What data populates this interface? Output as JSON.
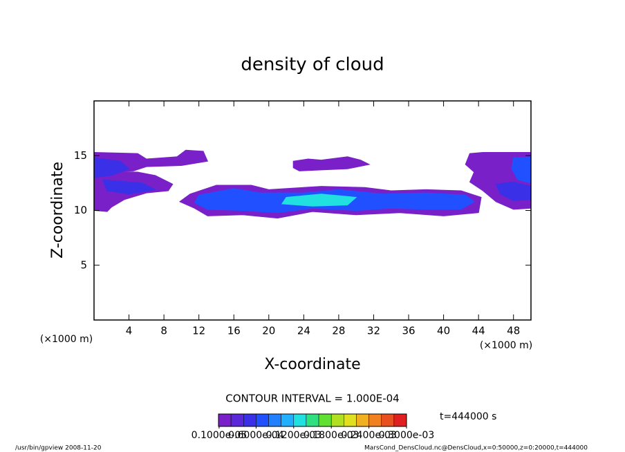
{
  "chart_data": {
    "type": "contour",
    "title": "density of cloud",
    "x_label": "X-coordinate",
    "y_label": "Z-coordinate",
    "x_unit_labels": [
      "(×1000 m)",
      "(×1000 m)"
    ],
    "xlim": [
      0,
      50
    ],
    "ylim": [
      0,
      20
    ],
    "xticks": [
      4,
      8,
      12,
      16,
      20,
      24,
      28,
      32,
      36,
      40,
      44,
      48
    ],
    "yticks": [
      5,
      10,
      15
    ],
    "regions": [
      {
        "value": 1e-05,
        "points": [
          [
            0,
            15.3
          ],
          [
            5,
            15.2
          ],
          [
            6,
            14.7
          ],
          [
            9.5,
            14.9
          ],
          [
            10.5,
            15.5
          ],
          [
            12.5,
            15.4
          ],
          [
            13,
            14.5
          ],
          [
            10,
            14.1
          ],
          [
            6,
            14
          ],
          [
            4.5,
            13.6
          ],
          [
            0,
            13.5
          ]
        ]
      },
      {
        "value": 1e-05,
        "points": [
          [
            0,
            13.6
          ],
          [
            5,
            13.5
          ],
          [
            7,
            13.2
          ],
          [
            9,
            12.4
          ],
          [
            8.5,
            11.8
          ],
          [
            6,
            11.6
          ],
          [
            3.5,
            11
          ],
          [
            2,
            10.3
          ],
          [
            1.5,
            9.9
          ],
          [
            0,
            10
          ]
        ]
      },
      {
        "value": 5e-05,
        "points": [
          [
            0,
            14.8
          ],
          [
            3,
            14.5
          ],
          [
            4,
            13.8
          ],
          [
            2,
            13.2
          ],
          [
            0,
            13
          ]
        ]
      },
      {
        "value": 5e-05,
        "points": [
          [
            1,
            12.8
          ],
          [
            5.5,
            12.5
          ],
          [
            7,
            11.9
          ],
          [
            4,
            11.5
          ],
          [
            1.5,
            11.8
          ]
        ]
      },
      {
        "value": 1e-05,
        "points": [
          [
            22.8,
            14.5
          ],
          [
            24.5,
            14.7
          ],
          [
            26,
            14.6
          ],
          [
            29,
            14.9
          ],
          [
            30.5,
            14.6
          ],
          [
            31.5,
            14.2
          ],
          [
            29,
            13.8
          ],
          [
            26,
            13.7
          ],
          [
            23.5,
            13.6
          ],
          [
            22.8,
            13.9
          ]
        ]
      },
      {
        "value": 1e-05,
        "points": [
          [
            11,
            11.5
          ],
          [
            14,
            12.3
          ],
          [
            18,
            12.3
          ],
          [
            20,
            11.9
          ],
          [
            26,
            12.2
          ],
          [
            31,
            12.1
          ],
          [
            34,
            11.8
          ],
          [
            38,
            11.9
          ],
          [
            42,
            11.8
          ],
          [
            44.3,
            11.2
          ],
          [
            44,
            9.8
          ],
          [
            40,
            9.5
          ],
          [
            35,
            9.8
          ],
          [
            30,
            9.6
          ],
          [
            25,
            9.9
          ],
          [
            21,
            9.3
          ],
          [
            17,
            9.6
          ],
          [
            13,
            9.5
          ],
          [
            11.5,
            10.2
          ],
          [
            9.8,
            10.8
          ]
        ]
      },
      {
        "value": 7e-05,
        "points": [
          [
            12,
            11.4
          ],
          [
            16,
            12
          ],
          [
            19,
            11.6
          ],
          [
            24,
            11.6
          ],
          [
            28,
            11.9
          ],
          [
            33,
            11.5
          ],
          [
            38,
            11.6
          ],
          [
            42.5,
            11.4
          ],
          [
            43.5,
            10.8
          ],
          [
            42,
            10.1
          ],
          [
            38,
            10.1
          ],
          [
            34,
            10.2
          ],
          [
            30,
            10
          ],
          [
            25,
            10.2
          ],
          [
            21,
            9.8
          ],
          [
            17,
            10
          ],
          [
            13,
            10.1
          ],
          [
            11.5,
            10.7
          ]
        ]
      },
      {
        "value": 0.00012,
        "points": [
          [
            22,
            11.2
          ],
          [
            26,
            11.5
          ],
          [
            30,
            11.2
          ],
          [
            29,
            10.5
          ],
          [
            25,
            10.4
          ],
          [
            21.5,
            10.6
          ]
        ]
      },
      {
        "value": 1e-05,
        "points": [
          [
            43,
            15.2
          ],
          [
            44.5,
            15.3
          ],
          [
            50,
            15.3
          ],
          [
            50,
            10.2
          ],
          [
            48,
            10.1
          ],
          [
            46,
            10.8
          ],
          [
            44.5,
            11.8
          ],
          [
            43,
            12.6
          ],
          [
            43.5,
            13.5
          ],
          [
            42.5,
            14.2
          ]
        ]
      },
      {
        "value": 7e-05,
        "points": [
          [
            48,
            14.8
          ],
          [
            50,
            14.9
          ],
          [
            50,
            12.5
          ],
          [
            48.5,
            12.8
          ],
          [
            47.8,
            13.8
          ]
        ]
      },
      {
        "value": 5e-05,
        "points": [
          [
            46,
            12.4
          ],
          [
            48,
            12.6
          ],
          [
            50,
            12.2
          ],
          [
            50,
            11
          ],
          [
            48,
            10.9
          ],
          [
            46.5,
            11.5
          ]
        ]
      }
    ],
    "contour_interval_label": "CONTOUR INTERVAL = 1.000E-04",
    "time_label": "t=444000 s",
    "colorbar": {
      "levels": [
        0,
        2e-05,
        4e-05,
        6e-05,
        8e-05,
        0.0001,
        0.00012,
        0.00014,
        0.00016,
        0.00018,
        0.0002,
        0.00022,
        0.00024,
        0.00026,
        0.00028,
        0.0003
      ],
      "colors": [
        "#7a20c8",
        "#5a28d8",
        "#3a30e8",
        "#2050ff",
        "#2080ff",
        "#20b0ff",
        "#20e0e0",
        "#30e080",
        "#60e030",
        "#b0e020",
        "#e0e020",
        "#f0b020",
        "#f08020",
        "#e85020",
        "#e02020"
      ],
      "ticks": [
        {
          "value": 1e-06,
          "label": "0.1000e-05"
        },
        {
          "value": 6e-05,
          "label": "0.6000e-04"
        },
        {
          "value": 0.00012,
          "label": "0.1200e-03"
        },
        {
          "value": 0.00018,
          "label": "0.1800e-03"
        },
        {
          "value": 0.00024,
          "label": "0.2400e-03"
        },
        {
          "value": 0.0003,
          "label": "0.3000e-03"
        }
      ]
    },
    "footer_left": "/usr/bin/gpview  2008-11-20",
    "footer_right": "MarsCond_DensCloud.nc@DensCloud,x=0:50000,z=0:20000,t=444000"
  }
}
